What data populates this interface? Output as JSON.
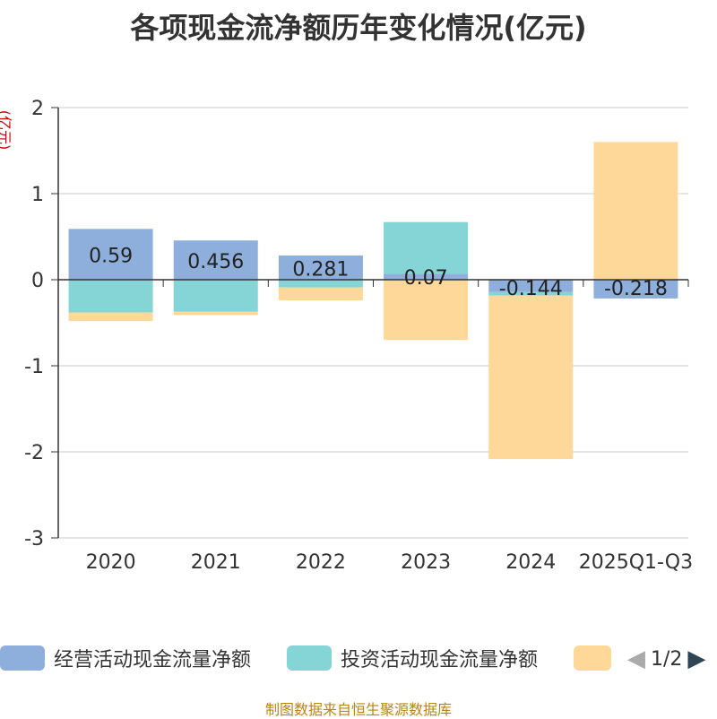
{
  "title": "各项现金流净额历年变化情况(亿元)",
  "unit_label": "(亿元)",
  "source": "制图数据来自恒生聚源数据库",
  "pager": {
    "text": "1/2",
    "prev_icon": "triangle-left-icon",
    "next_icon": "triangle-right-icon"
  },
  "colors": {
    "operating": "#8eaedc",
    "investing": "#85d4d6",
    "financing": "#fed898",
    "axis": "#333333",
    "grid": "#cccccc",
    "unit": "#cc0000",
    "source": "#b8860b"
  },
  "chart_data": {
    "type": "bar",
    "stacked": true,
    "title": "各项现金流净额历年变化情况(亿元)",
    "ylabel": "(亿元)",
    "ylim": [
      -3,
      2
    ],
    "yticks": [
      2,
      1,
      0,
      -1,
      -2,
      -3
    ],
    "categories": [
      "2020",
      "2021",
      "2022",
      "2023",
      "2024",
      "2025Q1-Q3"
    ],
    "series": [
      {
        "name": "经营活动现金流量净额",
        "color": "#8eaedc",
        "values": [
          0.59,
          0.456,
          0.281,
          0.07,
          -0.144,
          -0.218
        ]
      },
      {
        "name": "投资活动现金流量净额",
        "color": "#85d4d6",
        "values": [
          -0.38,
          -0.37,
          -0.09,
          0.6,
          -0.04,
          0.0
        ]
      },
      {
        "name": "",
        "color": "#fed898",
        "values": [
          -0.1,
          -0.04,
          -0.15,
          -0.7,
          -1.9,
          1.6
        ]
      }
    ],
    "data_labels": [
      "0.59",
      "0.456",
      "0.281",
      "0.07",
      "-0.144",
      "-0.218"
    ]
  }
}
